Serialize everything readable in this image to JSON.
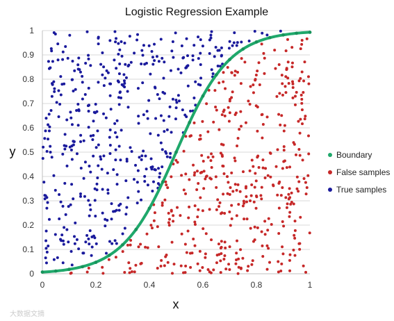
{
  "chart_data": {
    "type": "scatter",
    "title": "Logistic Regression Example",
    "xlabel": "x",
    "ylabel": "y",
    "xlim": [
      0,
      1
    ],
    "ylim": [
      0,
      1
    ],
    "x_ticks": [
      "0",
      "0.2",
      "0.4",
      "0.6",
      "0.8",
      "1"
    ],
    "y_ticks": [
      "0",
      "0.1",
      "0.2",
      "0.3",
      "0.4",
      "0.5",
      "0.6",
      "0.7",
      "0.8",
      "0.9",
      "1"
    ],
    "grid": "horizontal",
    "legend_position": "right",
    "series": [
      {
        "name": "Boundary",
        "type": "line",
        "color": "#1fa86b",
        "formula": "y = 1 / (1 + exp(-10 * (x - 0.5)))",
        "x": [
          0,
          0.05,
          0.1,
          0.15,
          0.2,
          0.25,
          0.3,
          0.35,
          0.4,
          0.45,
          0.5,
          0.55,
          0.6,
          0.65,
          0.7,
          0.75,
          0.8,
          0.85,
          0.9,
          0.95,
          1
        ],
        "y": [
          0.007,
          0.011,
          0.018,
          0.029,
          0.047,
          0.076,
          0.119,
          0.182,
          0.269,
          0.378,
          0.5,
          0.622,
          0.731,
          0.818,
          0.881,
          0.924,
          0.953,
          0.971,
          0.982,
          0.989,
          0.993
        ]
      },
      {
        "name": "False samples",
        "type": "scatter",
        "color": "#c62828",
        "region": "below boundary",
        "count": 450
      },
      {
        "name": "True samples",
        "type": "scatter",
        "color": "#1a1a9c",
        "region": "above boundary",
        "count": 450
      }
    ]
  },
  "watermark": "大数据文摘"
}
